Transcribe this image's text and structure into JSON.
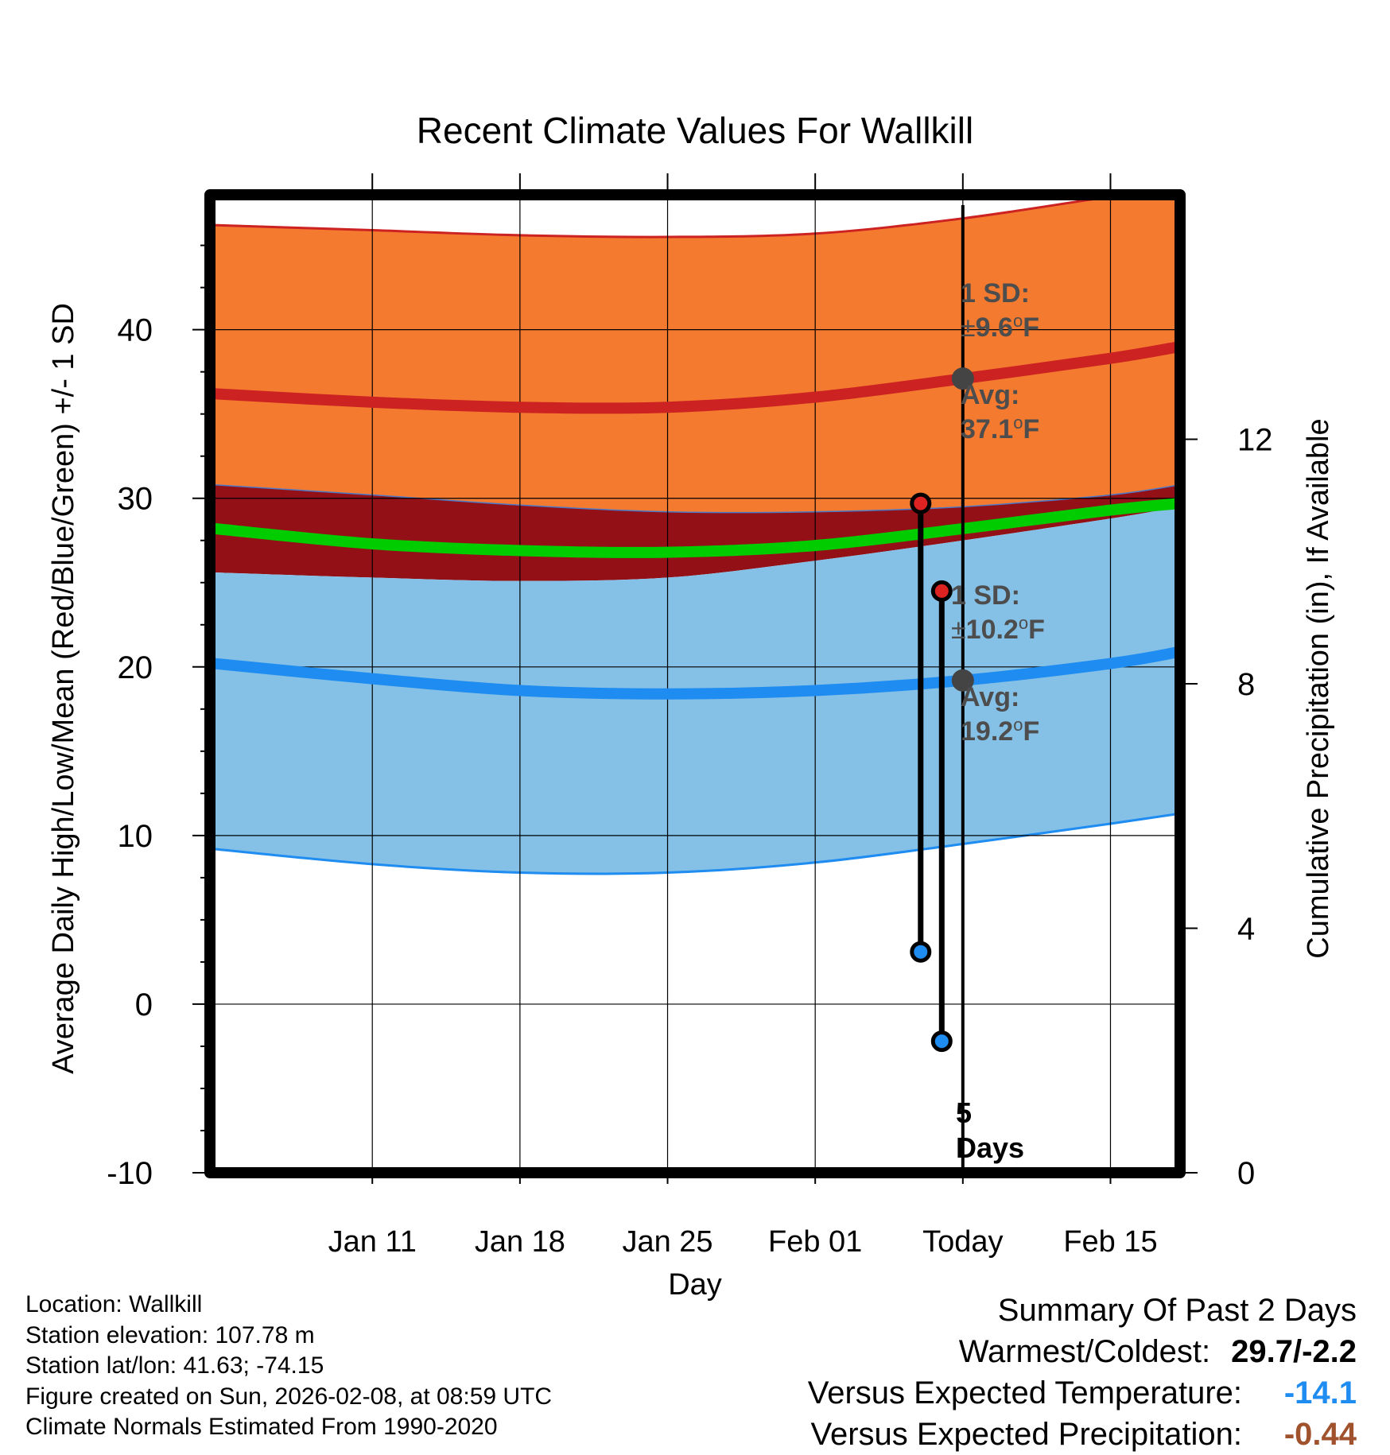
{
  "chart_data": {
    "type": "line",
    "title": "Recent Climate Values For Wallkill",
    "xlabel": "Day",
    "ylabel": "Average Daily High/Low/Mean (Red/Blue/Green) +/- 1 SD",
    "y2label": "Cumulative Precipitation (in), If Available",
    "ylim": [
      -10,
      48
    ],
    "y2lim": [
      0,
      16
    ],
    "xlim": [
      -35.7,
      10.3
    ],
    "x_units": "days relative to today (Feb 08)",
    "x_ticks": [
      {
        "x": -28,
        "label": "Jan 11"
      },
      {
        "x": -21,
        "label": "Jan 18"
      },
      {
        "x": -14,
        "label": "Jan 25"
      },
      {
        "x": -7,
        "label": "Feb 01"
      },
      {
        "x": 0,
        "label": "Today"
      },
      {
        "x": 7,
        "label": "Feb 15"
      }
    ],
    "y_ticks": [
      -10,
      0,
      10,
      20,
      30,
      40
    ],
    "y2_ticks": [
      0,
      4,
      8,
      12
    ],
    "days": [
      -35.5,
      -28,
      -21,
      -14,
      -7,
      0,
      7,
      10.3
    ],
    "normal_high": {
      "name": "Average High",
      "color": "#cc2222",
      "band_color": "#f47a30",
      "mean": [
        36.2,
        35.7,
        35.4,
        35.4,
        36.0,
        37.1,
        38.3,
        39.0
      ],
      "upper": [
        46.2,
        45.9,
        45.6,
        45.5,
        45.7,
        46.6,
        47.9,
        48.5
      ],
      "lower": [
        30.8,
        30.2,
        29.6,
        29.2,
        29.2,
        29.5,
        30.2,
        30.8
      ]
    },
    "normal_mean": {
      "name": "Average Mean",
      "color": "#00cc00",
      "band_color": "#931016",
      "mean": [
        28.2,
        27.3,
        26.9,
        26.8,
        27.2,
        28.2,
        29.3,
        29.7
      ]
    },
    "normal_low": {
      "name": "Average Low",
      "color": "#1e8cf0",
      "band_color": "#85c0e6",
      "mean": [
        20.2,
        19.3,
        18.6,
        18.4,
        18.6,
        19.2,
        20.2,
        20.9
      ],
      "upper": [
        25.6,
        25.3,
        25.1,
        25.3,
        26.3,
        27.5,
        28.8,
        29.5
      ],
      "lower": [
        9.2,
        8.3,
        7.8,
        7.8,
        8.4,
        9.5,
        10.7,
        11.3
      ]
    },
    "observed": [
      {
        "day": -2,
        "high": 29.7,
        "low": 3.1
      },
      {
        "day": -1,
        "high": 24.5,
        "low": -2.2
      }
    ],
    "today_markers": [
      {
        "day": 0,
        "value": 37.1
      },
      {
        "day": 0,
        "value": 19.2
      }
    ],
    "annotations": {
      "high_sd": {
        "line1": "1 SD:",
        "prefix": "±",
        "value": "9.6",
        "unit_sup": "o",
        "unit": "F"
      },
      "high_avg": {
        "line1": "Avg:",
        "value": "37.1",
        "unit_sup": "o",
        "unit": "F"
      },
      "low_sd": {
        "line1": "1 SD:",
        "prefix": "±",
        "value": "10.2",
        "unit_sup": "o",
        "unit": "F"
      },
      "low_avg": {
        "line1": "Avg:",
        "value": "19.2",
        "unit_sup": "o",
        "unit": "F"
      },
      "days_value": "5",
      "days_label": "Days"
    }
  },
  "info": {
    "location": "Location: Wallkill",
    "elevation": "Station elevation: 107.78 m",
    "latlon": "Station lat/lon: 41.63; -74.15",
    "created": "Figure created on Sun, 2026-02-08, at 08:59 UTC",
    "normals": "Climate Normals Estimated From 1990-2020"
  },
  "summary": {
    "title": "Summary Of Past 2 Days",
    "warm_cold_label": "Warmest/Coldest:",
    "warm_cold_value": "29.7/-2.2",
    "temp_label": "Versus Expected Temperature:",
    "temp_value": "-14.1",
    "temp_color": "#1e8cf0",
    "precip_label": "Versus Expected Precipitation:",
    "precip_value": "-0.44",
    "precip_color": "#a0522d"
  }
}
